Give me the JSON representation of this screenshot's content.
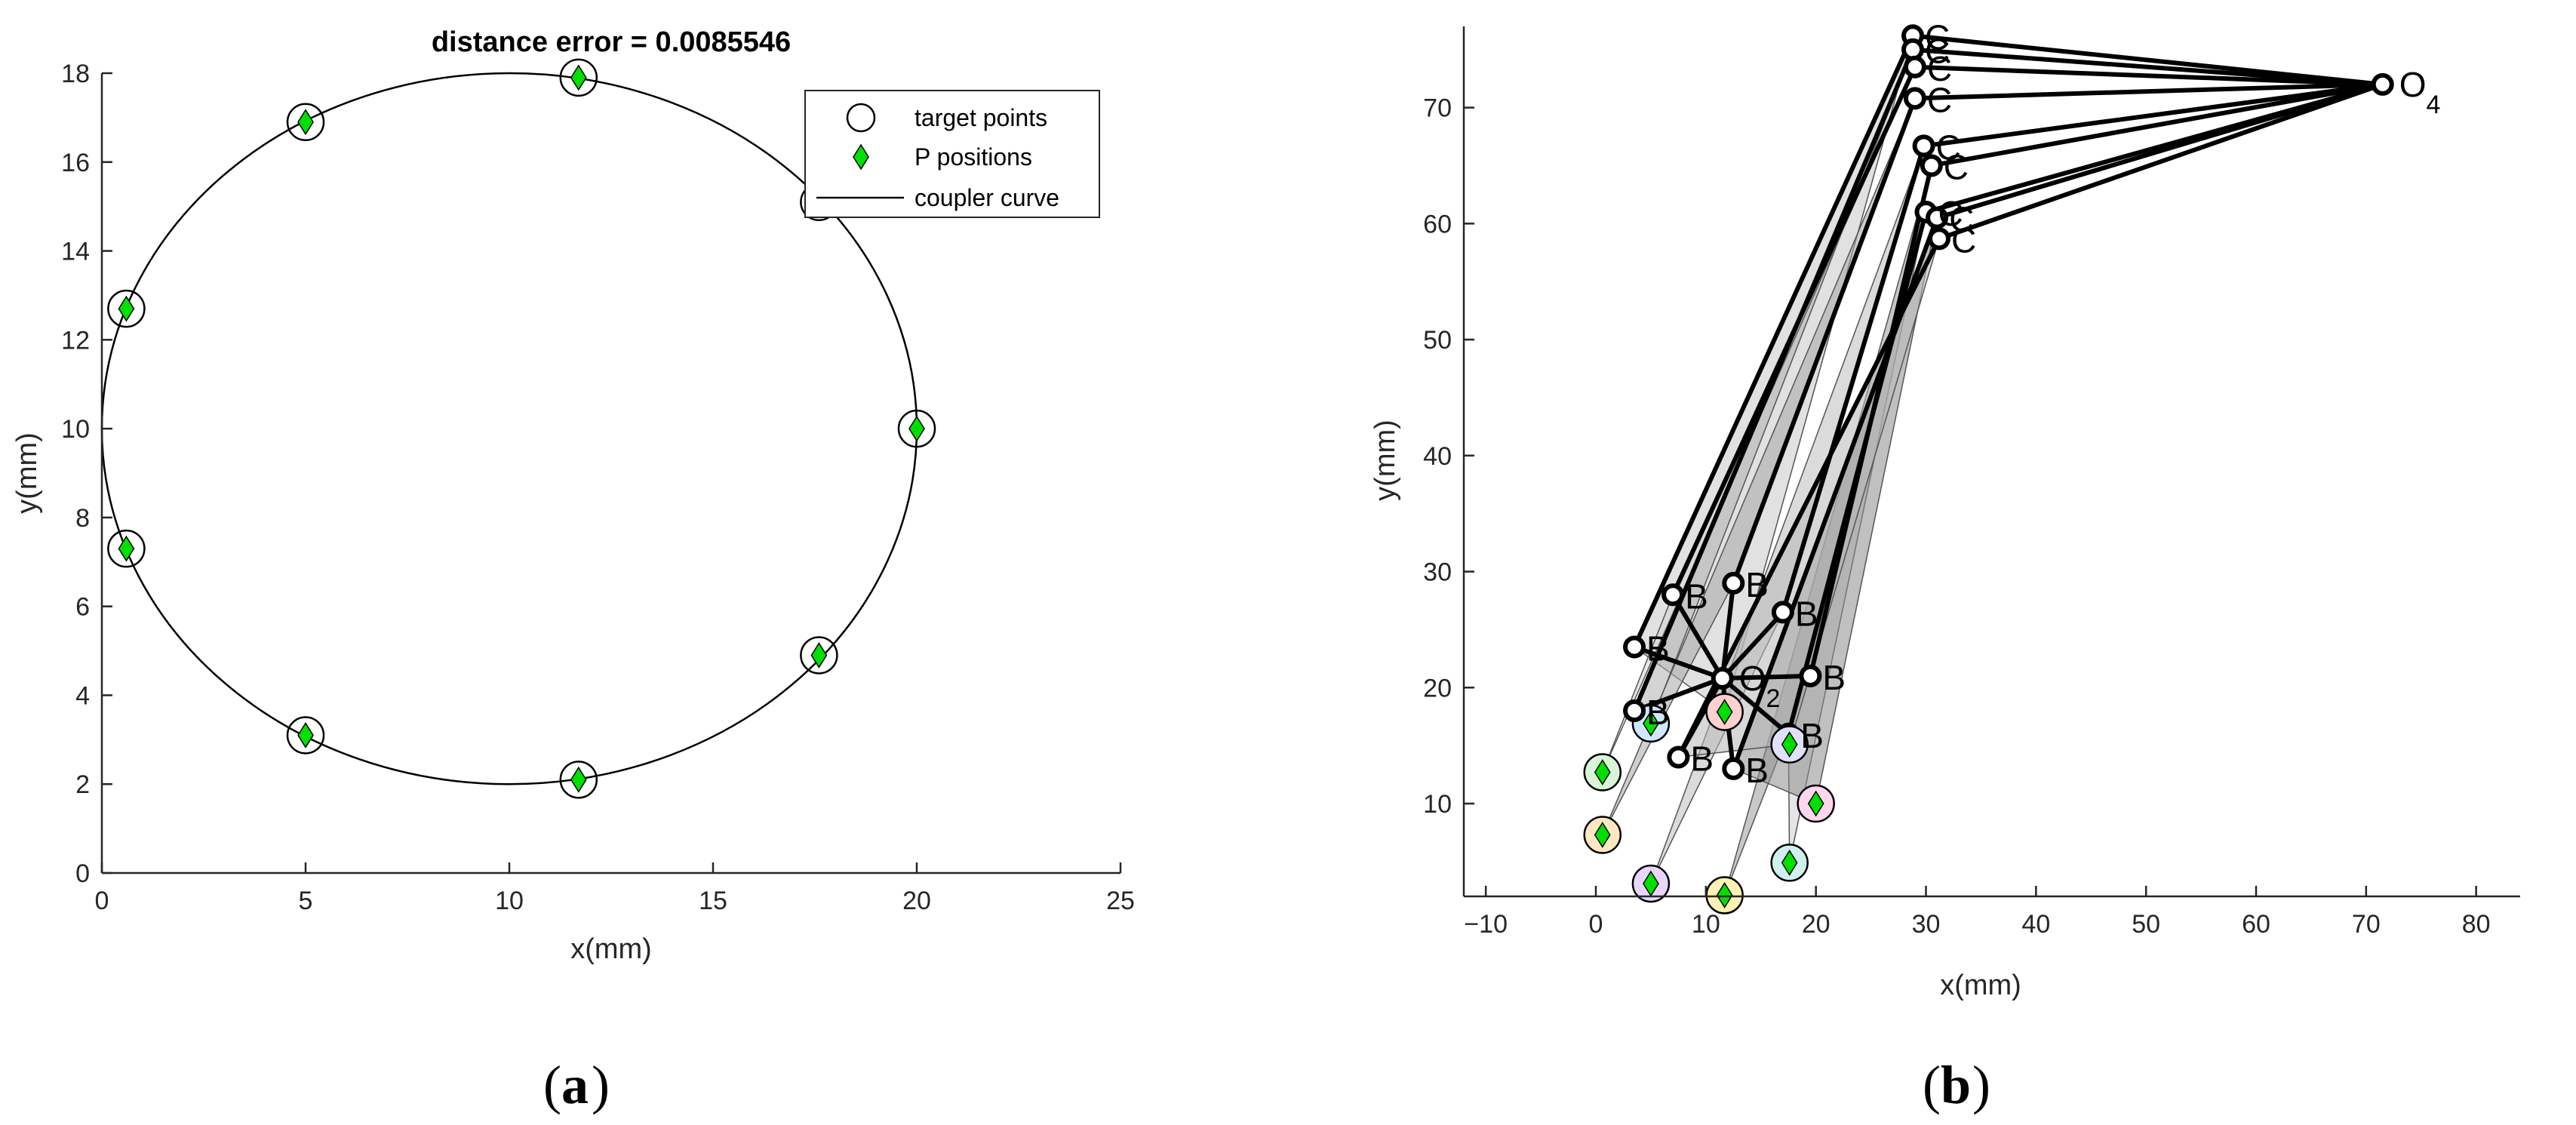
{
  "figure": {
    "panel_a_label": {
      "open": "(",
      "letter": "a",
      "close": ")"
    },
    "panel_b_label": {
      "open": "(",
      "letter": "b",
      "close": ")"
    }
  },
  "chart_data": [
    {
      "type": "scatter",
      "title": "distance error = 0.0085546",
      "xlabel": "x(mm)",
      "ylabel": "y(mm)",
      "xlim": [
        0,
        25
      ],
      "ylim": [
        0,
        18
      ],
      "xticks": [
        "0",
        "5",
        "10",
        "15",
        "20",
        "25"
      ],
      "yticks": [
        "0",
        "2",
        "4",
        "6",
        "8",
        "10",
        "12",
        "14",
        "16",
        "18"
      ],
      "legend": {
        "placement": "top-right",
        "entries": [
          "target points",
          "P positions",
          "coupler curve"
        ]
      },
      "coupler_curve": {
        "center": [
          10,
          10
        ],
        "rx": 10,
        "ry": 8
      },
      "series": [
        {
          "name": "target points",
          "marker": "circle",
          "points": [
            [
              11.7,
              17.9
            ],
            [
              5.0,
              16.9
            ],
            [
              0.6,
              12.7
            ],
            [
              0.6,
              7.3
            ],
            [
              5.0,
              3.1
            ],
            [
              11.7,
              2.1
            ],
            [
              17.6,
              4.9
            ],
            [
              20.0,
              10.0
            ],
            [
              17.6,
              15.1
            ]
          ]
        },
        {
          "name": "P positions",
          "marker": "diamond",
          "color": "#00e000",
          "points": [
            [
              11.7,
              17.9
            ],
            [
              5.0,
              16.9
            ],
            [
              0.6,
              12.7
            ],
            [
              0.6,
              7.3
            ],
            [
              5.0,
              3.1
            ],
            [
              11.7,
              2.1
            ],
            [
              17.6,
              4.9
            ],
            [
              20.0,
              10.0
            ]
          ]
        }
      ]
    },
    {
      "type": "scatter",
      "xlabel": "x(mm)",
      "ylabel": "y(mm)",
      "xlim": [
        -12,
        84
      ],
      "ylim": [
        2,
        77
      ],
      "xticks": [
        "−10",
        "0",
        "10",
        "20",
        "30",
        "40",
        "50",
        "60",
        "70",
        "80"
      ],
      "yticks": [
        "10",
        "20",
        "30",
        "40",
        "50",
        "60",
        "70"
      ],
      "joints": {
        "O2": {
          "label": "O",
          "subscript": "2",
          "point": [
            11.5,
            20.8
          ]
        },
        "O4": {
          "label": "O",
          "subscript": "4",
          "point": [
            71.5,
            72.0
          ]
        },
        "B_label": "B",
        "C_label": "C"
      },
      "configurations": [
        {
          "P": [
            11.7,
            17.9
          ],
          "B": [
            3.5,
            23.5
          ],
          "C": [
            28.8,
            76.2
          ]
        },
        {
          "P": [
            5.0,
            16.9
          ],
          "B": [
            3.5,
            18.0
          ],
          "C": [
            28.8,
            75.0
          ]
        },
        {
          "P": [
            0.6,
            12.7
          ],
          "B": [
            7.0,
            28.0
          ],
          "C": [
            29.0,
            73.5
          ]
        },
        {
          "P": [
            0.6,
            7.3
          ],
          "B": [
            12.5,
            29.0
          ],
          "C": [
            29.0,
            70.8
          ]
        },
        {
          "P": [
            5.0,
            3.1
          ],
          "B": [
            17.0,
            26.5
          ],
          "C": [
            29.8,
            66.7
          ]
        },
        {
          "P": [
            11.7,
            2.1
          ],
          "B": [
            19.5,
            21.0
          ],
          "C": [
            30.5,
            65.0
          ]
        },
        {
          "P": [
            17.6,
            4.9
          ],
          "B": [
            17.5,
            16.0
          ],
          "C": [
            30.0,
            61.0
          ]
        },
        {
          "P": [
            20.0,
            10.0
          ],
          "B": [
            12.5,
            13.0
          ],
          "C": [
            31.0,
            60.5
          ]
        },
        {
          "P": [
            17.6,
            15.1
          ],
          "B": [
            7.5,
            14.0
          ],
          "C": [
            31.2,
            58.7
          ]
        }
      ]
    }
  ]
}
